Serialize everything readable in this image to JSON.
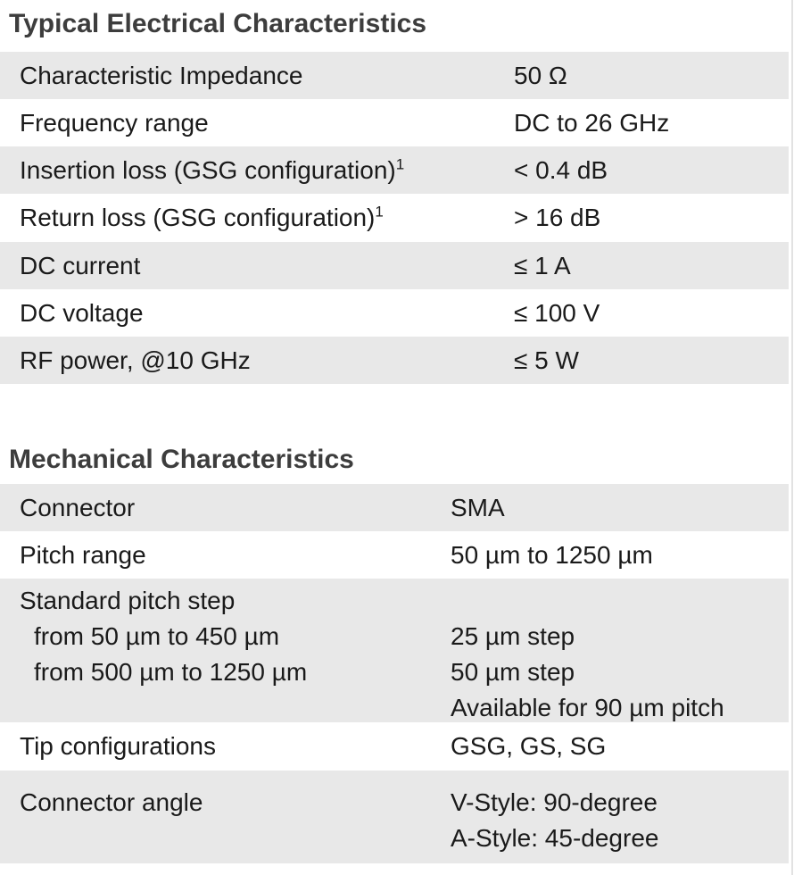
{
  "page": {
    "background_color": "#ffffff",
    "row_stripe_color": "#e8e8e8",
    "title_color": "#3d3d3d",
    "text_color": "#1a1a1a"
  },
  "electrical": {
    "title": "Typical Electrical Characteristics",
    "rows": [
      {
        "label": "Characteristic Impedance",
        "value": "50 Ω"
      },
      {
        "label": "Frequency range",
        "value": "DC to 26 GHz"
      },
      {
        "label": "Insertion loss (GSG configuration)",
        "label_sup": "1",
        "value": "< 0.4 dB"
      },
      {
        "label": "Return loss (GSG configuration)",
        "label_sup": "1",
        "value": "> 16 dB"
      },
      {
        "label": "DC current",
        "value": "≤ 1 A"
      },
      {
        "label": "DC voltage",
        "value": "≤ 100 V"
      },
      {
        "label": "RF power, @10 GHz",
        "value": "≤ 5 W"
      }
    ]
  },
  "mechanical": {
    "title": "Mechanical Characteristics",
    "rows": [
      {
        "label": "Connector",
        "value": "SMA"
      },
      {
        "label": "Pitch range",
        "value": "50 µm to 1250 µm"
      },
      {
        "label": "Standard pitch step",
        "sub_labels": [
          "from 50 µm to 450 µm",
          "from 500 µm to 1250 µm"
        ],
        "value_lines": [
          "25 µm step",
          "50 µm step",
          "Available for 90 µm pitch"
        ]
      },
      {
        "label": "Tip configurations",
        "value": "GSG, GS, SG"
      },
      {
        "label": "Connector angle",
        "value_lines": [
          "V-Style: 90-degree",
          "A-Style: 45-degree"
        ]
      }
    ]
  }
}
